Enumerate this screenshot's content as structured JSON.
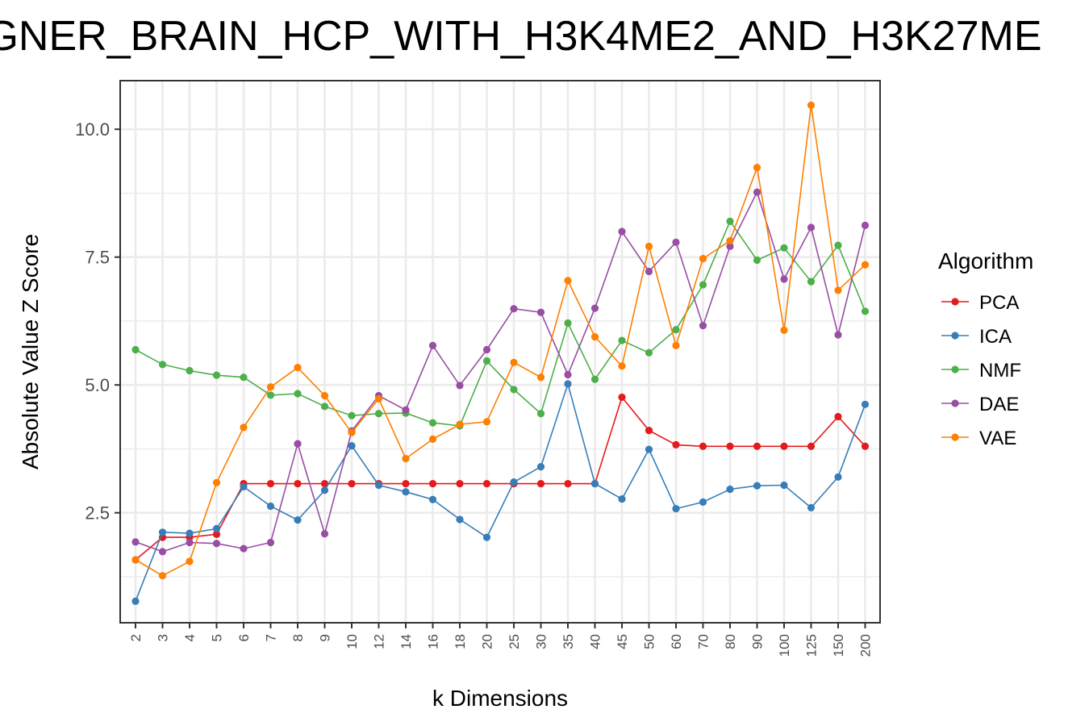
{
  "chart_data": {
    "type": "line",
    "title": "GNER_BRAIN_HCP_WITH_H3K4ME2_AND_H3K27ME",
    "xlabel": "k Dimensions",
    "ylabel": "Absolute Value Z Score",
    "categories": [
      "2",
      "3",
      "4",
      "5",
      "6",
      "7",
      "8",
      "9",
      "10",
      "12",
      "14",
      "16",
      "18",
      "20",
      "25",
      "30",
      "35",
      "40",
      "45",
      "50",
      "60",
      "70",
      "80",
      "90",
      "100",
      "125",
      "150",
      "200"
    ],
    "yticks": [
      "2.5",
      "5.0",
      "7.5",
      "10.0"
    ],
    "ylim": [
      0.35,
      10.95
    ],
    "grid": true,
    "legend": {
      "title": "Algorithm",
      "position": "right"
    },
    "series": [
      {
        "name": "PCA",
        "color": "#e41a1c",
        "values": [
          1.58,
          2.02,
          2.02,
          2.08,
          3.07,
          3.07,
          3.07,
          3.07,
          3.07,
          3.07,
          3.07,
          3.07,
          3.07,
          3.07,
          3.07,
          3.07,
          3.07,
          3.07,
          4.76,
          4.11,
          3.83,
          3.8,
          3.8,
          3.8,
          3.8,
          3.8,
          4.38,
          3.8
        ]
      },
      {
        "name": "ICA",
        "color": "#377eb8",
        "values": [
          0.77,
          2.12,
          2.1,
          2.19,
          3.01,
          2.63,
          2.36,
          2.94,
          3.81,
          3.04,
          2.91,
          2.76,
          2.37,
          2.02,
          3.1,
          3.4,
          5.02,
          3.07,
          2.77,
          3.74,
          2.58,
          2.71,
          2.96,
          3.03,
          3.04,
          2.6,
          3.2,
          4.62
        ]
      },
      {
        "name": "NMF",
        "color": "#4daf4a",
        "values": [
          5.69,
          5.4,
          5.28,
          5.19,
          5.15,
          4.8,
          4.83,
          4.58,
          4.4,
          4.44,
          4.45,
          4.26,
          4.2,
          5.47,
          4.91,
          4.44,
          6.21,
          5.11,
          5.87,
          5.63,
          6.08,
          6.96,
          8.2,
          7.44,
          7.68,
          7.02,
          7.73,
          6.44
        ]
      },
      {
        "name": "DAE",
        "color": "#984ea3",
        "values": [
          1.93,
          1.74,
          1.92,
          1.9,
          1.8,
          1.92,
          3.85,
          2.09,
          4.1,
          4.79,
          4.51,
          5.77,
          4.99,
          5.69,
          6.49,
          6.42,
          5.2,
          6.5,
          8.0,
          7.22,
          7.79,
          6.16,
          7.71,
          8.77,
          7.07,
          8.08,
          5.98,
          8.12
        ]
      },
      {
        "name": "VAE",
        "color": "#ff7f00",
        "values": [
          1.58,
          1.27,
          1.55,
          3.09,
          4.17,
          4.96,
          5.34,
          4.79,
          4.07,
          4.73,
          3.56,
          3.94,
          4.23,
          4.28,
          5.44,
          5.15,
          7.04,
          5.94,
          5.37,
          7.71,
          5.77,
          7.47,
          7.82,
          9.25,
          6.07,
          10.47,
          6.85,
          7.35
        ]
      }
    ]
  }
}
